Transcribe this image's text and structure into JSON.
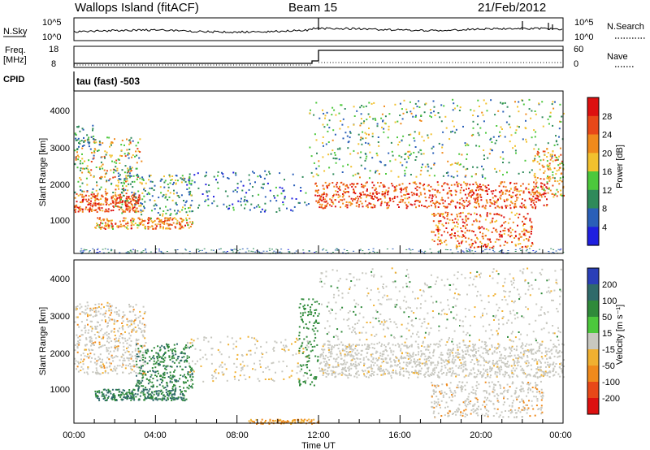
{
  "header": {
    "station": "Wallops Island (fitACF)",
    "beam": "Beam 15",
    "date": "21/Feb/2012"
  },
  "panels": {
    "nsky_label": "N.Sky",
    "nsky_ticks": [
      "10^5",
      "10^0"
    ],
    "nsearch_label": "N.Search",
    "nsearch_ticks": [
      "10^5",
      "10^0"
    ],
    "freq_label_1": "Freq.",
    "freq_label_2": "[MHz]",
    "freq_ticks": [
      "18",
      "8"
    ],
    "nave_label": "Nave",
    "nave_ticks": [
      "60",
      "0"
    ],
    "cpid_label": "CPID",
    "cpid_text": "tau (fast) -503"
  },
  "time_axis": {
    "label": "Time UT",
    "ticks": [
      "00:00",
      "04:00",
      "08:00",
      "12:00",
      "16:00",
      "20:00",
      "00:00"
    ]
  },
  "power_panel": {
    "ylabel": "Slant Range [km]",
    "yticks": [
      "1000",
      "2000",
      "3000",
      "4000"
    ],
    "colorbar_label": "Power [dB]",
    "colorbar_ticks": [
      "4",
      "8",
      "12",
      "16",
      "20",
      "24",
      "28"
    ],
    "colors": [
      "#1f1fe0",
      "#2a5fb8",
      "#2f8a5a",
      "#4cc83c",
      "#f2c12e",
      "#f08a1c",
      "#e84818",
      "#dd1010"
    ]
  },
  "velocity_panel": {
    "ylabel": "Slant Range [km]",
    "yticks": [
      "1000",
      "2000",
      "3000",
      "4000"
    ],
    "colorbar_label": "Velocity [m s⁻¹]",
    "colorbar_ticks": [
      "200",
      "100",
      "50",
      "15",
      "-15",
      "-50",
      "-100",
      "-200"
    ],
    "colors": [
      "#2a3fb8",
      "#2f6a6a",
      "#2f8a3a",
      "#4cc83c",
      "#c8c8c0",
      "#f0b030",
      "#f08a1c",
      "#e84818",
      "#dd1010"
    ]
  },
  "chart_data": [
    {
      "type": "heatmap",
      "title": "Power [dB]",
      "xlabel": "Time UT",
      "ylabel": "Slant Range [km]",
      "x_range": [
        "00:00",
        "24:00"
      ],
      "ylim": [
        180,
        4500
      ],
      "zlim": [
        0,
        30
      ],
      "zlabel": "Power [dB]",
      "features": [
        {
          "time": [
            "00:00",
            "03:00"
          ],
          "range_km": [
            1300,
            3300
          ],
          "power_db": 24
        },
        {
          "time": [
            "01:00",
            "05:30"
          ],
          "range_km": [
            900,
            1100
          ],
          "power_db": 22
        },
        {
          "time": [
            "02:00",
            "05:30"
          ],
          "range_km": [
            1200,
            2300
          ],
          "power_db": 12
        },
        {
          "time": [
            "11:30",
            "23:00"
          ],
          "range_km": [
            1400,
            2100
          ],
          "power_db": 26
        },
        {
          "time": [
            "17:30",
            "22:00"
          ],
          "range_km": [
            400,
            1300
          ],
          "power_db": 24
        },
        {
          "time": [
            "12:00",
            "24:00"
          ],
          "range_km": [
            2200,
            4200
          ],
          "power_db": 12
        }
      ]
    },
    {
      "type": "heatmap",
      "title": "Velocity [m s⁻¹]",
      "xlabel": "Time UT",
      "ylabel": "Slant Range [km]",
      "x_range": [
        "00:00",
        "24:00"
      ],
      "ylim": [
        180,
        4500
      ],
      "zlim": [
        -200,
        200
      ],
      "zlabel": "Velocity [m s⁻¹]",
      "features": [
        {
          "time": [
            "00:00",
            "03:30"
          ],
          "range_km": [
            1500,
            3400
          ],
          "velocity_ms": 0
        },
        {
          "time": [
            "01:00",
            "05:00"
          ],
          "range_km": [
            800,
            1100
          ],
          "velocity_ms": 80
        },
        {
          "time": [
            "03:00",
            "05:30"
          ],
          "range_km": [
            1100,
            2300
          ],
          "velocity_ms": 60
        },
        {
          "time": [
            "11:00",
            "12:00"
          ],
          "range_km": [
            1200,
            3500
          ],
          "velocity_ms": 50
        },
        {
          "time": [
            "12:00",
            "24:00"
          ],
          "range_km": [
            1400,
            3400
          ],
          "velocity_ms": 0
        }
      ]
    }
  ]
}
